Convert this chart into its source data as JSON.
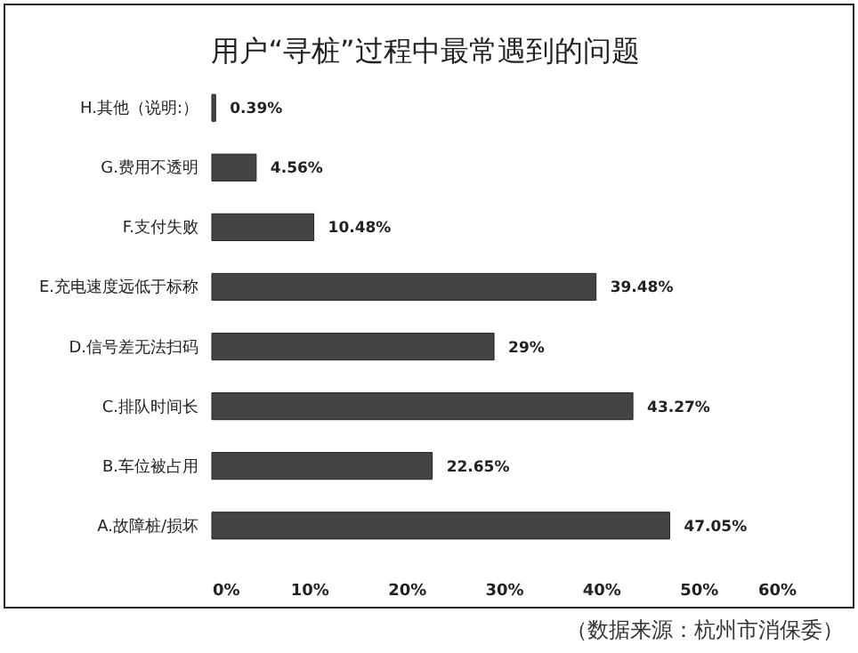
{
  "chart_data": {
    "type": "bar",
    "orientation": "horizontal",
    "title": "用户“寻桩”过程中最常遇到的问题",
    "categories": [
      "H.其他（说明:）",
      "G.费用不透明",
      "F.支付失败",
      "E.充电速度远低于标称",
      "D.信号差无法扫码",
      "C.排队时间长",
      "B.车位被占用",
      "A.故障桩/损坏"
    ],
    "values": [
      0.39,
      4.56,
      10.48,
      39.48,
      29,
      43.27,
      22.65,
      47.05
    ],
    "value_labels": [
      "0.39%",
      "4.56%",
      "10.48%",
      "39.48%",
      "29%",
      "43.27%",
      "22.65%",
      "47.05%"
    ],
    "color": "#444444",
    "xlim": [
      0,
      60
    ],
    "xticks": [
      {
        "value": 0,
        "label": "0%"
      },
      {
        "value": 10,
        "label": "10%"
      },
      {
        "value": 20,
        "label": "20%"
      },
      {
        "value": 30,
        "label": "30%"
      },
      {
        "value": 40,
        "label": "40%"
      },
      {
        "value": 50,
        "label": "50%"
      },
      {
        "value": 60,
        "label": "60%"
      }
    ],
    "annotations": [
      "（数据来源：杭州市消保委）"
    ]
  }
}
